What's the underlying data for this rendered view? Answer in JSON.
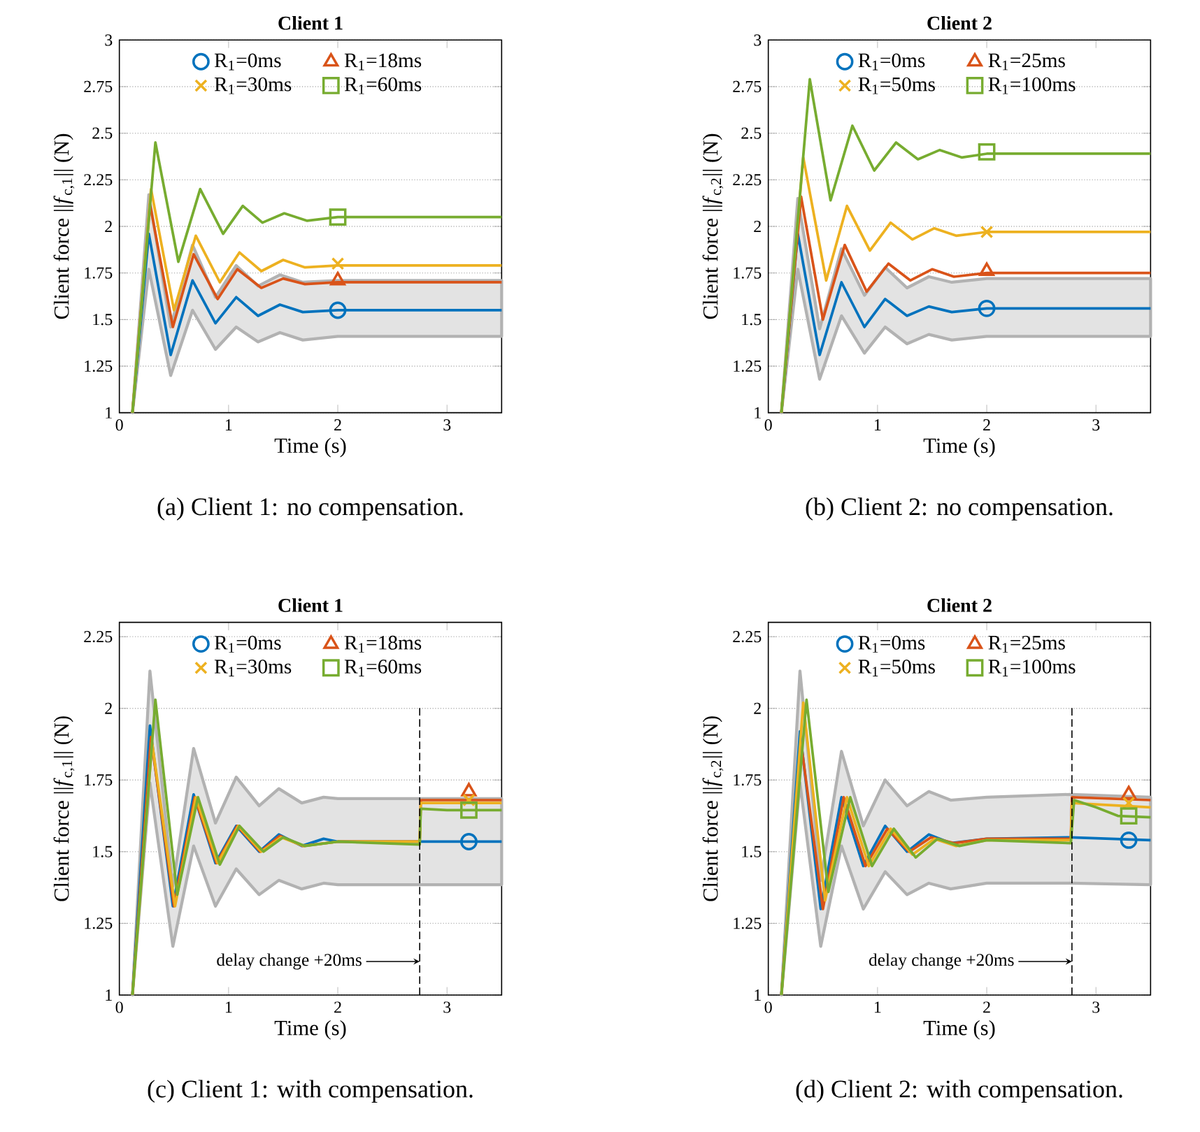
{
  "chart_data": [
    {
      "type": "line",
      "title": "Client 1",
      "xlabel": "Time (s)",
      "ylabel": "Client force ||*f*$_{c,1}$|| (N)",
      "xlim": [
        0,
        3.5
      ],
      "ylim": [
        1,
        3
      ],
      "xticks": [
        0,
        1,
        2,
        3
      ],
      "yticks": [
        1,
        1.25,
        1.5,
        1.75,
        2,
        2.25,
        2.5,
        2.75,
        3
      ],
      "grid": "y",
      "legend": "top",
      "annotations": [
        "(a) Client 1: no compensation."
      ],
      "series": [
        {
          "type": "line",
          "color": "#0072bd",
          "x": [
            0.12,
            0.27,
            0.47,
            0.67,
            0.88,
            1.07,
            1.27,
            1.47,
            1.68,
            2,
            3.5
          ],
          "values": [
            1,
            1.96,
            1.31,
            1.71,
            1.48,
            1.62,
            1.52,
            1.58,
            1.54,
            1.55,
            1.55
          ],
          "upper": [
            1,
            2.17,
            1.46,
            1.9,
            1.62,
            1.79,
            1.68,
            1.74,
            1.7,
            1.71,
            1.71
          ],
          "lower": [
            1,
            1.77,
            1.2,
            1.55,
            1.34,
            1.46,
            1.38,
            1.43,
            1.39,
            1.41,
            1.41
          ]
        },
        {
          "type": "line",
          "color": "#d95319",
          "x": [
            0.12,
            0.28,
            0.49,
            0.68,
            0.9,
            1.08,
            1.3,
            1.5,
            1.7,
            2,
            3.5
          ],
          "values": [
            1,
            2.12,
            1.46,
            1.85,
            1.61,
            1.77,
            1.67,
            1.72,
            1.69,
            1.7,
            1.7
          ]
        },
        {
          "type": "line",
          "color": "#edb120",
          "x": [
            0.12,
            0.29,
            0.5,
            0.7,
            0.92,
            1.1,
            1.3,
            1.5,
            1.7,
            2,
            3.5
          ],
          "values": [
            1,
            2.2,
            1.55,
            1.95,
            1.7,
            1.86,
            1.76,
            1.82,
            1.78,
            1.79,
            1.79
          ]
        },
        {
          "type": "line",
          "color": "#77ac30",
          "x": [
            0.12,
            0.33,
            0.54,
            0.74,
            0.95,
            1.13,
            1.31,
            1.51,
            1.72,
            2,
            3.5
          ],
          "values": [
            1,
            2.45,
            1.81,
            2.2,
            1.96,
            2.11,
            2.02,
            2.07,
            2.03,
            2.05,
            2.05
          ]
        },
        {
          "type": "scatter",
          "name": "R$_{1}$=0ms",
          "color": "#0072bd",
          "marker": "circle",
          "x": [
            2
          ],
          "values": [
            1.55
          ]
        },
        {
          "type": "scatter",
          "name": "R$_{1}$=18ms",
          "color": "#d95319",
          "marker": "triangle",
          "x": [
            2
          ],
          "values": [
            1.71
          ]
        },
        {
          "type": "scatter",
          "name": "R$_{1}$=30ms",
          "color": "#edb120",
          "marker": "cross",
          "x": [
            2
          ],
          "values": [
            1.8
          ]
        },
        {
          "type": "scatter",
          "name": "R$_{1}$=60ms",
          "color": "#77ac30",
          "marker": "square",
          "x": [
            2
          ],
          "values": [
            2.05
          ]
        }
      ]
    },
    {
      "type": "line",
      "title": "Client 2",
      "xlabel": "Time (s)",
      "ylabel": "Client force ||*f*$_{c,2}$|| (N)",
      "xlim": [
        0,
        3.5
      ],
      "ylim": [
        1,
        3
      ],
      "xticks": [
        0,
        1,
        2,
        3
      ],
      "yticks": [
        1,
        1.25,
        1.5,
        1.75,
        2,
        2.25,
        2.5,
        2.75,
        3
      ],
      "grid": "y",
      "legend": "top",
      "annotations": [
        "(b) Client 2: no compensation."
      ],
      "series": [
        {
          "type": "line",
          "color": "#0072bd",
          "x": [
            0.12,
            0.27,
            0.47,
            0.67,
            0.88,
            1.07,
            1.27,
            1.47,
            1.68,
            2,
            3.5
          ],
          "values": [
            1,
            1.96,
            1.31,
            1.7,
            1.46,
            1.61,
            1.52,
            1.57,
            1.54,
            1.56,
            1.56
          ],
          "upper": [
            1,
            2.15,
            1.45,
            1.88,
            1.63,
            1.78,
            1.67,
            1.73,
            1.7,
            1.72,
            1.72
          ],
          "lower": [
            1,
            1.77,
            1.18,
            1.52,
            1.32,
            1.46,
            1.37,
            1.42,
            1.39,
            1.41,
            1.41
          ]
        },
        {
          "type": "line",
          "color": "#d95319",
          "x": [
            0.12,
            0.3,
            0.5,
            0.7,
            0.9,
            1.1,
            1.3,
            1.5,
            1.7,
            2,
            3.5
          ],
          "values": [
            1,
            2.16,
            1.5,
            1.9,
            1.65,
            1.8,
            1.71,
            1.77,
            1.73,
            1.75,
            1.75
          ]
        },
        {
          "type": "line",
          "color": "#edb120",
          "x": [
            0.12,
            0.32,
            0.53,
            0.72,
            0.93,
            1.12,
            1.32,
            1.52,
            1.72,
            2,
            3.5
          ],
          "values": [
            1,
            2.37,
            1.71,
            2.11,
            1.87,
            2.02,
            1.93,
            1.99,
            1.95,
            1.97,
            1.97
          ]
        },
        {
          "type": "line",
          "color": "#77ac30",
          "x": [
            0.12,
            0.38,
            0.57,
            0.77,
            0.97,
            1.17,
            1.37,
            1.57,
            1.77,
            2,
            3.5
          ],
          "values": [
            1,
            2.79,
            2.14,
            2.54,
            2.3,
            2.45,
            2.36,
            2.41,
            2.37,
            2.39,
            2.39
          ]
        },
        {
          "type": "scatter",
          "name": "R$_{1}$=0ms",
          "color": "#0072bd",
          "marker": "circle",
          "x": [
            2
          ],
          "values": [
            1.56
          ]
        },
        {
          "type": "scatter",
          "name": "R$_{1}$=25ms",
          "color": "#d95319",
          "marker": "triangle",
          "x": [
            2
          ],
          "values": [
            1.76
          ]
        },
        {
          "type": "scatter",
          "name": "R$_{1}$=50ms",
          "color": "#edb120",
          "marker": "cross",
          "x": [
            2
          ],
          "values": [
            1.97
          ]
        },
        {
          "type": "scatter",
          "name": "R$_{1}$=100ms",
          "color": "#77ac30",
          "marker": "square",
          "x": [
            2
          ],
          "values": [
            2.4
          ]
        }
      ]
    },
    {
      "type": "line",
      "title": "Client 1",
      "xlabel": "Time (s)",
      "ylabel": "Client force ||*f*$_{c,1}$|| (N)",
      "xlim": [
        0,
        3.5
      ],
      "ylim": [
        1,
        2.3
      ],
      "xticks": [
        0,
        1,
        2,
        3
      ],
      "yticks": [
        1,
        1.25,
        1.5,
        1.75,
        2,
        2.25
      ],
      "grid": "y",
      "legend": "top",
      "annotations": [
        "(c) Client 1: with compensation."
      ],
      "ref_lines": [
        {
          "axis": "x",
          "value": 2.75,
          "label": "delay change +20ms",
          "line_style": "dashed"
        }
      ],
      "series": [
        {
          "type": "line",
          "color": "#0072bd",
          "x": [
            0.12,
            0.28,
            0.49,
            0.68,
            0.88,
            1.07,
            1.28,
            1.46,
            1.67,
            1.87,
            2,
            2.75,
            3.5
          ],
          "values": [
            1,
            1.94,
            1.31,
            1.7,
            1.46,
            1.59,
            1.5,
            1.56,
            1.52,
            1.545,
            1.535,
            1.535,
            1.535
          ],
          "upper": [
            1,
            2.13,
            1.38,
            1.86,
            1.6,
            1.76,
            1.66,
            1.72,
            1.67,
            1.69,
            1.685,
            1.685,
            1.685
          ],
          "lower": [
            1,
            1.74,
            1.17,
            1.52,
            1.31,
            1.44,
            1.35,
            1.4,
            1.37,
            1.39,
            1.385,
            1.385,
            1.385
          ]
        },
        {
          "type": "line",
          "color": "#d95319",
          "x": [
            0.12,
            0.29,
            0.5,
            0.69,
            0.89,
            1.08,
            1.29,
            1.47,
            1.68,
            2,
            2.75,
            2.76,
            3.5
          ],
          "values": [
            1,
            1.9,
            1.31,
            1.69,
            1.46,
            1.59,
            1.5,
            1.555,
            1.52,
            1.535,
            1.535,
            1.68,
            1.68
          ]
        },
        {
          "type": "line",
          "color": "#edb120",
          "x": [
            0.12,
            0.3,
            0.51,
            0.7,
            0.9,
            1.09,
            1.3,
            1.48,
            1.69,
            2,
            2.75,
            2.76,
            3.5
          ],
          "values": [
            1,
            1.88,
            1.31,
            1.69,
            1.46,
            1.59,
            1.5,
            1.55,
            1.52,
            1.535,
            1.535,
            1.67,
            1.67
          ]
        },
        {
          "type": "line",
          "color": "#77ac30",
          "x": [
            0.12,
            0.33,
            0.53,
            0.72,
            0.92,
            1.1,
            1.32,
            1.5,
            1.7,
            2,
            2.75,
            2.76,
            3,
            3.5
          ],
          "values": [
            1,
            2.03,
            1.35,
            1.69,
            1.455,
            1.59,
            1.5,
            1.55,
            1.52,
            1.535,
            1.525,
            1.65,
            1.645,
            1.645
          ]
        },
        {
          "type": "scatter",
          "name": "R$_{1}$=0ms",
          "color": "#0072bd",
          "marker": "circle",
          "x": [
            3.2
          ],
          "values": [
            1.535
          ]
        },
        {
          "type": "scatter",
          "name": "R$_{1}$=18ms",
          "color": "#d95319",
          "marker": "triangle",
          "x": [
            3.2
          ],
          "values": [
            1.71
          ]
        },
        {
          "type": "scatter",
          "name": "R$_{1}$=30ms",
          "color": "#edb120",
          "marker": "cross",
          "x": [
            3.2
          ],
          "values": [
            1.68
          ]
        },
        {
          "type": "scatter",
          "name": "R$_{1}$=60ms",
          "color": "#77ac30",
          "marker": "square",
          "x": [
            3.2
          ],
          "values": [
            1.645
          ]
        }
      ]
    },
    {
      "type": "line",
      "title": "Client 2",
      "xlabel": "Time (s)",
      "ylabel": "Client force ||*f*$_{c,2}$|| (N)",
      "xlim": [
        0,
        3.5
      ],
      "ylim": [
        1,
        2.3
      ],
      "xticks": [
        0,
        1,
        2,
        3
      ],
      "yticks": [
        1,
        1.25,
        1.5,
        1.75,
        2,
        2.25
      ],
      "grid": "y",
      "legend": "top",
      "annotations": [
        "(d) Client 2: with compensation."
      ],
      "ref_lines": [
        {
          "axis": "x",
          "value": 2.78,
          "label": "delay change +20ms",
          "line_style": "dashed"
        }
      ],
      "series": [
        {
          "type": "line",
          "color": "#0072bd",
          "x": [
            0.12,
            0.29,
            0.48,
            0.67,
            0.87,
            1.07,
            1.27,
            1.47,
            1.67,
            2,
            2.77,
            3.5
          ],
          "values": [
            1,
            1.92,
            1.3,
            1.69,
            1.45,
            1.59,
            1.5,
            1.56,
            1.53,
            1.545,
            1.55,
            1.54
          ],
          "upper": [
            1,
            2.13,
            1.4,
            1.85,
            1.59,
            1.75,
            1.66,
            1.71,
            1.68,
            1.69,
            1.7,
            1.69
          ],
          "lower": [
            1,
            1.74,
            1.17,
            1.52,
            1.3,
            1.43,
            1.35,
            1.39,
            1.37,
            1.39,
            1.39,
            1.385
          ]
        },
        {
          "type": "line",
          "color": "#d95319",
          "x": [
            0.12,
            0.3,
            0.5,
            0.69,
            0.89,
            1.09,
            1.29,
            1.49,
            1.7,
            2,
            2.77,
            2.78,
            3.5
          ],
          "values": [
            1,
            1.88,
            1.3,
            1.69,
            1.45,
            1.58,
            1.5,
            1.55,
            1.53,
            1.545,
            1.545,
            1.69,
            1.68
          ]
        },
        {
          "type": "line",
          "color": "#edb120",
          "x": [
            0.12,
            0.32,
            0.52,
            0.72,
            0.92,
            1.12,
            1.32,
            1.52,
            1.72,
            2,
            2.77,
            2.78,
            3,
            3.5
          ],
          "values": [
            1,
            2.02,
            1.33,
            1.69,
            1.45,
            1.58,
            1.49,
            1.545,
            1.52,
            1.54,
            1.54,
            1.67,
            1.665,
            1.655
          ]
        },
        {
          "type": "line",
          "color": "#77ac30",
          "x": [
            0.12,
            0.35,
            0.55,
            0.75,
            0.95,
            1.15,
            1.35,
            1.55,
            1.75,
            2,
            2.77,
            2.8,
            3,
            3.2,
            3.5
          ],
          "values": [
            1,
            2.03,
            1.36,
            1.69,
            1.45,
            1.58,
            1.48,
            1.545,
            1.52,
            1.54,
            1.53,
            1.68,
            1.655,
            1.625,
            1.62
          ]
        },
        {
          "type": "scatter",
          "name": "R$_{1}$=0ms",
          "color": "#0072bd",
          "marker": "circle",
          "x": [
            3.3
          ],
          "values": [
            1.54
          ]
        },
        {
          "type": "scatter",
          "name": "R$_{1}$=25ms",
          "color": "#d95319",
          "marker": "triangle",
          "x": [
            3.3
          ],
          "values": [
            1.7
          ]
        },
        {
          "type": "scatter",
          "name": "R$_{1}$=50ms",
          "color": "#edb120",
          "marker": "cross",
          "x": [
            3.3
          ],
          "values": [
            1.67
          ]
        },
        {
          "type": "scatter",
          "name": "R$_{1}$=100ms",
          "color": "#77ac30",
          "marker": "square",
          "x": [
            3.3
          ],
          "values": [
            1.625
          ]
        }
      ]
    }
  ]
}
